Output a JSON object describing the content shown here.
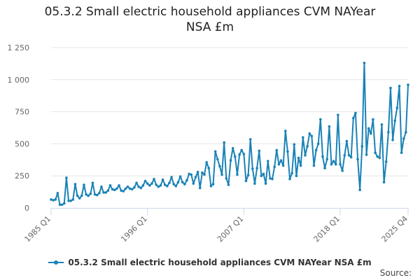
{
  "title": {
    "line1": "05.3.2 Small electric household appliances CVM NAYear",
    "line2": "NSA £m"
  },
  "credits": "Source:",
  "colors": {
    "series": "#1a82b6",
    "grid": "#e6e6e6",
    "axis": "#ccd6eb",
    "label": "#666666"
  },
  "chart_data": {
    "type": "line",
    "x_start": "1985 Q1",
    "x_end": "2025 Q4",
    "x_ticks": [
      "1985 Q1",
      "1996 Q1",
      "2007 Q1",
      "2018 Q1",
      "2025 Q4"
    ],
    "y_ticks": [
      "0",
      "250",
      "500",
      "750",
      "1 000",
      "1 250"
    ],
    "ylim": [
      0,
      1250
    ],
    "grid": true,
    "legend_placement": "bottom",
    "series": [
      {
        "name": "05.3.2 Small electric household appliances CVM NAYear NSA £m",
        "values": [
          65,
          60,
          65,
          115,
          25,
          25,
          35,
          235,
          55,
          55,
          65,
          185,
          95,
          75,
          95,
          180,
          105,
          95,
          110,
          195,
          105,
          100,
          115,
          165,
          120,
          120,
          135,
          175,
          145,
          140,
          150,
          175,
          135,
          130,
          150,
          165,
          150,
          145,
          160,
          195,
          165,
          155,
          175,
          210,
          190,
          175,
          190,
          225,
          180,
          165,
          175,
          220,
          180,
          170,
          195,
          240,
          185,
          170,
          200,
          245,
          200,
          185,
          215,
          265,
          260,
          190,
          240,
          280,
          155,
          275,
          260,
          355,
          310,
          170,
          185,
          440,
          380,
          325,
          260,
          510,
          230,
          180,
          370,
          465,
          400,
          260,
          415,
          450,
          420,
          210,
          255,
          535,
          305,
          190,
          310,
          445,
          250,
          265,
          190,
          365,
          230,
          225,
          320,
          450,
          340,
          370,
          330,
          600,
          440,
          225,
          270,
          495,
          250,
          390,
          330,
          550,
          410,
          480,
          580,
          560,
          330,
          450,
          500,
          690,
          400,
          310,
          380,
          635,
          340,
          365,
          340,
          725,
          340,
          290,
          410,
          520,
          410,
          395,
          700,
          740,
          380,
          140,
          480,
          1130,
          415,
          620,
          580,
          690,
          430,
          400,
          390,
          650,
          200,
          360,
          590,
          935,
          530,
          680,
          780,
          950,
          430,
          540,
          590,
          960
        ]
      }
    ]
  }
}
